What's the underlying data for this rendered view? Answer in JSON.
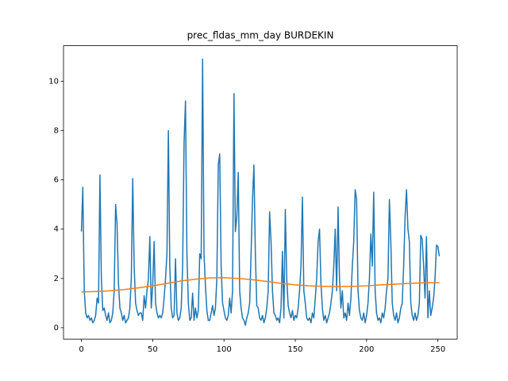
{
  "chart_data": {
    "type": "line",
    "title": "prec_fldas_mm_day BURDEKIN",
    "xlim": [
      -12.55,
      263.55
    ],
    "xticks": [
      0,
      50,
      100,
      150,
      200,
      250
    ],
    "ylim": [
      -0.46,
      11.44
    ],
    "yticks": [
      0,
      2,
      4,
      6,
      8,
      10
    ],
    "series": [
      {
        "color": "#1f77b4",
        "x": [
          0,
          1,
          2,
          3,
          4,
          5,
          6,
          7,
          8,
          9,
          10,
          11,
          12,
          13,
          14,
          15,
          16,
          17,
          18,
          19,
          20,
          21,
          22,
          23,
          24,
          25,
          26,
          27,
          28,
          29,
          30,
          31,
          32,
          33,
          34,
          35,
          36,
          37,
          38,
          39,
          40,
          41,
          42,
          43,
          44,
          45,
          46,
          47,
          48,
          49,
          50,
          51,
          52,
          53,
          54,
          55,
          56,
          57,
          58,
          59,
          60,
          61,
          62,
          63,
          64,
          65,
          66,
          67,
          68,
          69,
          70,
          71,
          72,
          73,
          74,
          75,
          76,
          77,
          78,
          79,
          80,
          81,
          82,
          83,
          84,
          85,
          86,
          87,
          88,
          89,
          90,
          91,
          92,
          93,
          94,
          95,
          96,
          97,
          98,
          99,
          100,
          101,
          102,
          103,
          104,
          105,
          106,
          107,
          108,
          109,
          110,
          111,
          112,
          113,
          114,
          115,
          116,
          117,
          118,
          119,
          120,
          121,
          122,
          123,
          124,
          125,
          126,
          127,
          128,
          129,
          130,
          131,
          132,
          133,
          134,
          135,
          136,
          137,
          138,
          139,
          140,
          141,
          142,
          143,
          144,
          145,
          146,
          147,
          148,
          149,
          150,
          151,
          152,
          153,
          154,
          155,
          156,
          157,
          158,
          159,
          160,
          161,
          162,
          163,
          164,
          165,
          166,
          167,
          168,
          169,
          170,
          171,
          172,
          173,
          174,
          175,
          176,
          177,
          178,
          179,
          180,
          181,
          182,
          183,
          184,
          185,
          186,
          187,
          188,
          189,
          190,
          191,
          192,
          193,
          194,
          195,
          196,
          197,
          198,
          199,
          200,
          201,
          202,
          203,
          204,
          205,
          206,
          207,
          208,
          209,
          210,
          211,
          212,
          213,
          214,
          215,
          216,
          217,
          218,
          219,
          220,
          221,
          222,
          223,
          224,
          225,
          226,
          227,
          228,
          229,
          230,
          231,
          232,
          233,
          234,
          235,
          236,
          237,
          238,
          239,
          240,
          241,
          242,
          243,
          244,
          245,
          246,
          247,
          248,
          249,
          250,
          251
        ],
        "values": [
          3.9,
          5.7,
          1.5,
          0.6,
          0.4,
          0.5,
          0.3,
          0.4,
          0.2,
          0.3,
          0.5,
          1.2,
          1.0,
          6.2,
          2.0,
          0.7,
          0.8,
          0.5,
          0.3,
          0.6,
          0.2,
          0.3,
          0.6,
          1.5,
          5.0,
          4.2,
          1.8,
          0.8,
          0.6,
          0.3,
          0.5,
          0.2,
          0.3,
          0.4,
          0.8,
          2.0,
          6.05,
          2.5,
          1.0,
          0.7,
          0.5,
          0.6,
          0.6,
          0.3,
          1.3,
          0.8,
          1.5,
          2.0,
          3.7,
          0.8,
          1.7,
          3.5,
          1.0,
          0.6,
          0.4,
          0.5,
          0.4,
          0.6,
          1.2,
          2.0,
          3.0,
          8.0,
          2.5,
          0.8,
          0.4,
          0.5,
          2.8,
          0.6,
          0.3,
          0.4,
          0.8,
          2.5,
          7.5,
          9.2,
          3.0,
          1.0,
          0.3,
          0.4,
          1.4,
          0.3,
          0.8,
          0.4,
          0.7,
          3.0,
          2.8,
          10.9,
          3.0,
          1.7,
          0.7,
          0.3,
          0.3,
          0.6,
          0.9,
          0.5,
          0.8,
          2.0,
          6.6,
          7.05,
          2.5,
          1.0,
          0.7,
          0.4,
          0.3,
          0.5,
          1.2,
          0.6,
          1.5,
          9.5,
          3.9,
          4.5,
          6.3,
          1.5,
          0.8,
          0.4,
          0.3,
          0.1,
          0.4,
          0.6,
          1.0,
          3.0,
          5.2,
          6.6,
          3.0,
          0.9,
          0.8,
          0.4,
          0.3,
          0.5,
          0.2,
          0.4,
          0.8,
          1.5,
          4.7,
          3.5,
          1.5,
          0.6,
          0.5,
          0.3,
          0.4,
          0.2,
          0.8,
          3.1,
          0.4,
          4.8,
          2.0,
          0.9,
          0.6,
          0.4,
          0.7,
          0.3,
          0.5,
          0.4,
          0.8,
          1.5,
          2.5,
          5.3,
          1.5,
          1.0,
          0.4,
          0.3,
          0.4,
          0.2,
          0.6,
          0.4,
          1.2,
          2.0,
          3.5,
          4.0,
          1.8,
          0.8,
          0.3,
          0.5,
          0.2,
          0.4,
          0.6,
          1.0,
          1.5,
          2.5,
          4.0,
          1.5,
          4.9,
          2.0,
          0.8,
          1.5,
          0.4,
          0.6,
          0.3,
          1.0,
          0.5,
          1.2,
          2.5,
          3.5,
          5.6,
          5.2,
          1.5,
          0.7,
          0.4,
          0.3,
          0.6,
          0.2,
          0.5,
          1.0,
          2.0,
          3.8,
          2.5,
          5.5,
          1.5,
          0.6,
          0.3,
          0.4,
          0.2,
          0.6,
          0.4,
          0.8,
          1.5,
          2.0,
          5.2,
          3.5,
          1.0,
          0.5,
          0.3,
          0.6,
          0.2,
          0.4,
          0.8,
          1.0,
          2.5,
          4.5,
          5.6,
          4.0,
          3.5,
          1.0,
          0.5,
          0.3,
          0.6,
          0.3,
          0.5,
          1.0,
          3.75,
          3.6,
          2.5,
          1.2,
          3.7,
          0.4,
          1.5,
          0.5,
          0.8,
          1.2,
          2.0,
          3.35,
          3.3,
          2.9
        ]
      },
      {
        "color": "#ff7f0e",
        "x": [
          0,
          10,
          20,
          30,
          40,
          50,
          60,
          70,
          80,
          90,
          100,
          110,
          120,
          130,
          140,
          150,
          160,
          170,
          180,
          190,
          200,
          210,
          220,
          230,
          240,
          250,
          251
        ],
        "values": [
          1.45,
          1.47,
          1.5,
          1.55,
          1.62,
          1.7,
          1.8,
          1.9,
          1.97,
          2.02,
          2.03,
          2.0,
          1.95,
          1.88,
          1.8,
          1.74,
          1.7,
          1.68,
          1.67,
          1.68,
          1.7,
          1.74,
          1.77,
          1.8,
          1.82,
          1.83,
          1.83
        ]
      }
    ]
  }
}
